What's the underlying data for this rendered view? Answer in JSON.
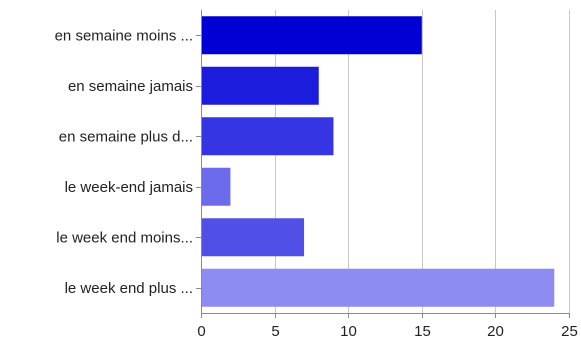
{
  "chart_data": {
    "type": "bar",
    "orientation": "horizontal",
    "categories": [
      "en semaine moins ...",
      "en semaine jamais",
      "en semaine plus d...",
      "le week-end jamais",
      "le week end moins...",
      "le week end plus ..."
    ],
    "values": [
      15,
      8,
      9,
      2,
      7,
      24
    ],
    "colors": [
      "#0000d4",
      "#1c1cdc",
      "#3535e3",
      "#6b6bec",
      "#5050e6",
      "#8c8cf2"
    ],
    "xlim": [
      0,
      25
    ],
    "xticks": [
      "0",
      "5",
      "10",
      "15",
      "20",
      "25"
    ],
    "grid": "vertical",
    "title": "",
    "xlabel": "",
    "ylabel": ""
  }
}
